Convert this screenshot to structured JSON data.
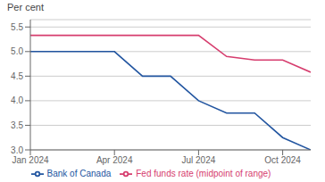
{
  "chart_data": {
    "type": "line",
    "title": "Per cent",
    "x": [
      0,
      1,
      2,
      3,
      4,
      5,
      6,
      7,
      8,
      9,
      10
    ],
    "series": [
      {
        "name": "Bank of Canada",
        "color": "#2255a0",
        "values": [
          5.0,
          5.0,
          5.0,
          5.0,
          4.5,
          4.5,
          4.0,
          3.75,
          3.75,
          3.25,
          3.0
        ]
      },
      {
        "name": "Fed funds rate (midpoint of range)",
        "color": "#d63d6e",
        "values": [
          5.33,
          5.33,
          5.33,
          5.33,
          5.33,
          5.33,
          5.33,
          4.9,
          4.83,
          4.83,
          4.58
        ]
      }
    ],
    "xlim": [
      0,
      10
    ],
    "xticks": [
      {
        "value": 0,
        "label": "Jan 2024"
      },
      {
        "value": 3,
        "label": "Apr 2024"
      },
      {
        "value": 6,
        "label": "Jul 2024"
      },
      {
        "value": 9,
        "label": "Oct 2024"
      }
    ],
    "ylim": [
      3.0,
      5.65
    ],
    "yticks": [
      {
        "value": 3.0,
        "label": "3.0"
      },
      3.5,
      {
        "value": 4.0,
        "label": "4.0"
      },
      4.5,
      {
        "value": 5.0,
        "label": "5.0"
      },
      5.5
    ],
    "grid": true,
    "legend": "bottom"
  }
}
